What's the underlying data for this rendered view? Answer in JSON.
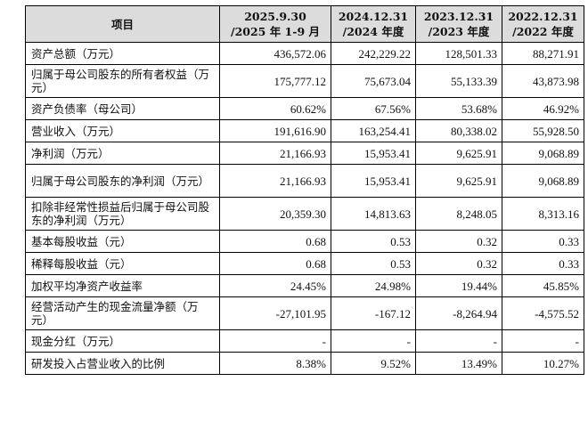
{
  "table": {
    "header": {
      "item": "项目",
      "columns": [
        {
          "line1": "2025.9.30",
          "line2": "/2025 年 1-9 月"
        },
        {
          "line1": "2024.12.31",
          "line2": "/2024 年度"
        },
        {
          "line1": "2023.12.31",
          "line2": "/2023 年度"
        },
        {
          "line1": "2022.12.31",
          "line2": "/2022 年度"
        }
      ]
    },
    "rows": [
      {
        "label": "资产总额（万元）",
        "values": [
          "436,572.06",
          "242,229.22",
          "128,501.33",
          "88,271.91"
        ]
      },
      {
        "label": "归属于母公司股东的所有者权益（万元）",
        "values": [
          "175,777.12",
          "75,673.04",
          "55,133.39",
          "43,873.98"
        ]
      },
      {
        "label": "资产负债率（母公司）",
        "values": [
          "60.62%",
          "67.56%",
          "53.68%",
          "46.92%"
        ]
      },
      {
        "label": "营业收入（万元）",
        "values": [
          "191,616.90",
          "163,254.41",
          "80,338.02",
          "55,928.50"
        ]
      },
      {
        "label": "净利润（万元）",
        "values": [
          "21,166.93",
          "15,953.41",
          "9,625.91",
          "9,068.89"
        ]
      },
      {
        "label": "归属于母公司股东的净利润（万元）",
        "values": [
          "21,166.93",
          "15,953.41",
          "9,625.91",
          "9,068.89"
        ]
      },
      {
        "label": "扣除非经常性损益后归属于母公司股东的净利润（万元）",
        "values": [
          "20,359.30",
          "14,813.63",
          "8,248.05",
          "8,313.16"
        ]
      },
      {
        "label": "基本每股收益（元）",
        "values": [
          "0.68",
          "0.53",
          "0.32",
          "0.33"
        ]
      },
      {
        "label": "稀释每股收益（元）",
        "values": [
          "0.68",
          "0.53",
          "0.32",
          "0.33"
        ]
      },
      {
        "label": "加权平均净资产收益率",
        "values": [
          "24.45%",
          "24.98%",
          "19.44%",
          "45.85%"
        ]
      },
      {
        "label": "经营活动产生的现金流量净额（万元）",
        "values": [
          "-27,101.95",
          "-167.12",
          "-8,264.94",
          "-4,575.52"
        ]
      },
      {
        "label": "现金分红（万元）",
        "values": [
          "-",
          "-",
          "-",
          "-"
        ]
      },
      {
        "label": "研发投入占营业收入的比例",
        "values": [
          "8.38%",
          "9.52%",
          "13.49%",
          "10.27%"
        ]
      }
    ]
  }
}
